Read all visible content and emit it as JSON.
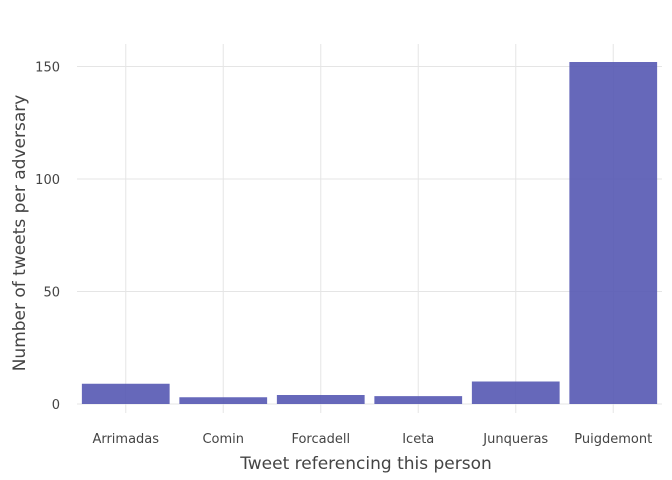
{
  "chart_data": {
    "type": "bar",
    "title": "",
    "xlabel": "Tweet referencing this person",
    "ylabel": "Number of tweets per adversary",
    "categories": [
      "Arrimadas",
      "Comin",
      "Forcadell",
      "Iceta",
      "Junqueras",
      "Puigdemont"
    ],
    "values": [
      9,
      3,
      4,
      3.5,
      10,
      152
    ],
    "ylim": [
      -4,
      160
    ],
    "yticks": [
      0,
      50,
      100,
      150
    ],
    "grid": true,
    "bar_color": "#5558b3"
  }
}
